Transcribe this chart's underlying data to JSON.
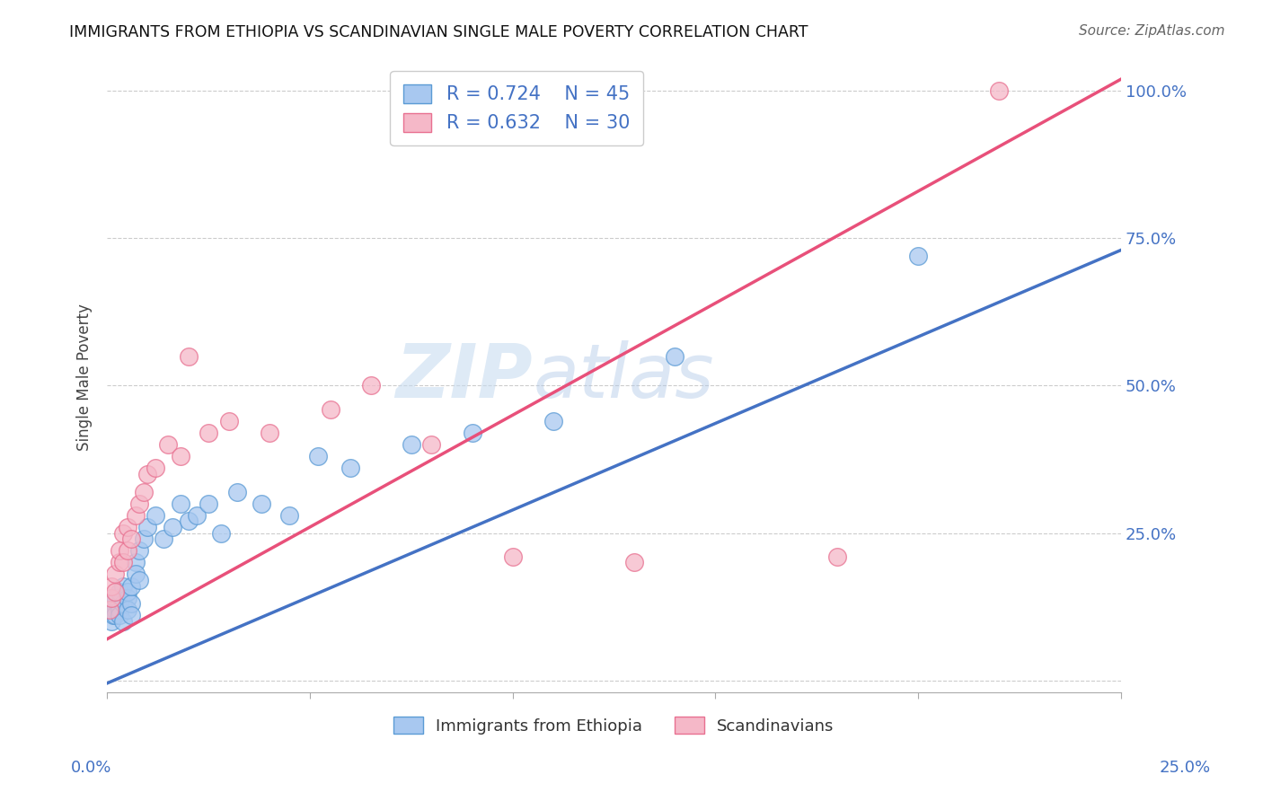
{
  "title": "IMMIGRANTS FROM ETHIOPIA VS SCANDINAVIAN SINGLE MALE POVERTY CORRELATION CHART",
  "source": "Source: ZipAtlas.com",
  "ylabel": "Single Male Poverty",
  "y_ticks": [
    0.0,
    0.25,
    0.5,
    0.75,
    1.0
  ],
  "y_tick_labels": [
    "",
    "25.0%",
    "50.0%",
    "75.0%",
    "100.0%"
  ],
  "x_lim": [
    0.0,
    0.25
  ],
  "y_lim": [
    -0.02,
    1.05
  ],
  "blue_R": 0.724,
  "blue_N": 45,
  "pink_R": 0.632,
  "pink_N": 30,
  "blue_fill": "#A8C8F0",
  "pink_fill": "#F5B8C8",
  "blue_edge": "#5B9BD5",
  "pink_edge": "#E87090",
  "blue_line": "#4472C4",
  "pink_line": "#E8507A",
  "watermark_zip": "ZIP",
  "watermark_atlas": "atlas",
  "legend_labels": [
    "Immigrants from Ethiopia",
    "Scandinavians"
  ],
  "blue_x": [
    0.0005,
    0.001,
    0.001,
    0.001,
    0.0015,
    0.002,
    0.002,
    0.002,
    0.003,
    0.003,
    0.003,
    0.003,
    0.004,
    0.004,
    0.004,
    0.005,
    0.005,
    0.005,
    0.006,
    0.006,
    0.006,
    0.007,
    0.007,
    0.008,
    0.008,
    0.009,
    0.01,
    0.012,
    0.014,
    0.016,
    0.018,
    0.02,
    0.022,
    0.025,
    0.028,
    0.032,
    0.038,
    0.045,
    0.052,
    0.06,
    0.075,
    0.09,
    0.11,
    0.14,
    0.2
  ],
  "blue_y": [
    0.12,
    0.13,
    0.1,
    0.14,
    0.11,
    0.12,
    0.14,
    0.11,
    0.13,
    0.15,
    0.12,
    0.11,
    0.13,
    0.16,
    0.1,
    0.14,
    0.12,
    0.15,
    0.13,
    0.16,
    0.11,
    0.2,
    0.18,
    0.22,
    0.17,
    0.24,
    0.26,
    0.28,
    0.24,
    0.26,
    0.3,
    0.27,
    0.28,
    0.3,
    0.25,
    0.32,
    0.3,
    0.28,
    0.38,
    0.36,
    0.4,
    0.42,
    0.44,
    0.55,
    0.72
  ],
  "pink_x": [
    0.0005,
    0.001,
    0.001,
    0.002,
    0.002,
    0.003,
    0.003,
    0.004,
    0.004,
    0.005,
    0.005,
    0.006,
    0.007,
    0.008,
    0.009,
    0.01,
    0.012,
    0.015,
    0.018,
    0.02,
    0.025,
    0.03,
    0.04,
    0.055,
    0.065,
    0.08,
    0.1,
    0.13,
    0.18,
    0.22
  ],
  "pink_y": [
    0.12,
    0.14,
    0.16,
    0.15,
    0.18,
    0.2,
    0.22,
    0.25,
    0.2,
    0.22,
    0.26,
    0.24,
    0.28,
    0.3,
    0.32,
    0.35,
    0.36,
    0.4,
    0.38,
    0.55,
    0.42,
    0.44,
    0.42,
    0.46,
    0.5,
    0.4,
    0.21,
    0.2,
    0.21,
    1.0
  ],
  "blue_line_x0": 0.0,
  "blue_line_y0": -0.005,
  "blue_line_x1": 0.25,
  "blue_line_y1": 0.73,
  "pink_line_x0": 0.0,
  "pink_line_y0": 0.07,
  "pink_line_x1": 0.25,
  "pink_line_y1": 1.02
}
